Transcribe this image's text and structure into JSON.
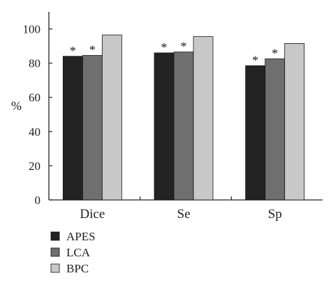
{
  "chart_data": {
    "type": "bar",
    "categories": [
      "Dice",
      "Se",
      "Sp"
    ],
    "series": [
      {
        "name": "APES",
        "values": [
          84,
          86,
          78.5
        ],
        "color": "#232323",
        "marker": [
          "*",
          "*",
          "*"
        ]
      },
      {
        "name": "LCA",
        "values": [
          84.5,
          86.5,
          82.5
        ],
        "color": "#6f6f6f",
        "marker": [
          "*",
          "*",
          "*"
        ]
      },
      {
        "name": "BPC",
        "values": [
          96.5,
          95.5,
          91.5
        ],
        "color": "#c8c8c8",
        "marker": [
          "",
          "",
          ""
        ]
      }
    ],
    "ylabel": "%",
    "xlabel": "",
    "ylim": [
      0,
      110
    ],
    "yticks": [
      0,
      20,
      40,
      60,
      80,
      100
    ],
    "grid": false,
    "legend_position": "bottom-left"
  }
}
